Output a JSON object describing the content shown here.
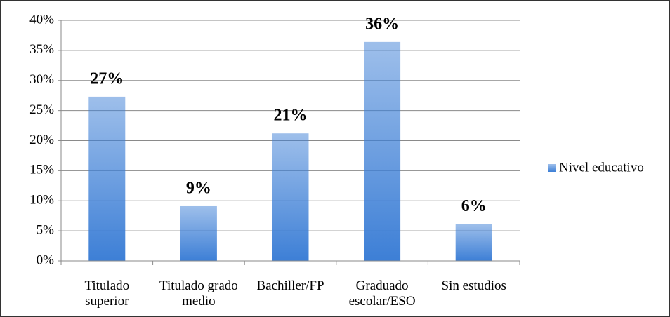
{
  "chart_data": {
    "type": "bar",
    "categories": [
      "Titulado superior",
      "Titulado grado medio",
      "Bachiller/FP",
      "Graduado escolar/ESO",
      "Sin estudios"
    ],
    "series": [
      {
        "name": "Nivel educativo",
        "color": "#3d7fd6",
        "values": [
          27.3,
          9.1,
          21.2,
          36.4,
          6.1
        ],
        "value_labels": [
          "27%",
          "9%",
          "21%",
          "36%",
          "6%"
        ]
      }
    ],
    "ylim": [
      0,
      40
    ],
    "yticks": [
      {
        "value": 0,
        "label": "0%"
      },
      {
        "value": 5,
        "label": "5%"
      },
      {
        "value": 10,
        "label": "10%"
      },
      {
        "value": 15,
        "label": "15%"
      },
      {
        "value": 20,
        "label": "20%"
      },
      {
        "value": 25,
        "label": "25%"
      },
      {
        "value": 30,
        "label": "30%"
      },
      {
        "value": 35,
        "label": "35%"
      },
      {
        "value": 40,
        "label": "40%"
      }
    ],
    "grid": true,
    "legend": "right"
  }
}
